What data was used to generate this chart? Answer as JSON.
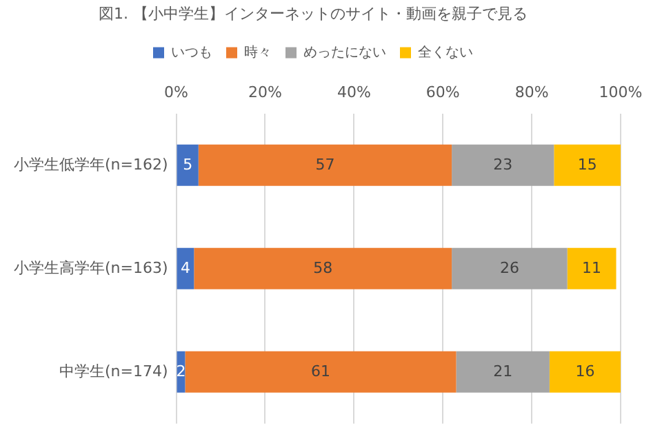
{
  "chart_data": {
    "type": "bar",
    "orientation": "horizontal",
    "stacked": true,
    "title": "図1. 【小中学生】インターネットのサイト・動画を親子で見る",
    "categories": [
      "小学生低学年(n=162)",
      "小学生高学年(n=163)",
      "中学生(n=174)"
    ],
    "series": [
      {
        "name": "いつも",
        "color": "#4472c4",
        "values": [
          5,
          4,
          2
        ]
      },
      {
        "name": "時々",
        "color": "#ed7d31",
        "values": [
          57,
          58,
          61
        ]
      },
      {
        "name": "めったにない",
        "color": "#a5a5a5",
        "values": [
          23,
          26,
          21
        ]
      },
      {
        "name": "全くない",
        "color": "#ffc000",
        "values": [
          15,
          11,
          16
        ]
      }
    ],
    "xlim": [
      0,
      100
    ],
    "xticks": [
      {
        "value": 0,
        "label": "0%"
      },
      {
        "value": 20,
        "label": "20%"
      },
      {
        "value": 40,
        "label": "40%"
      },
      {
        "value": 60,
        "label": "60%"
      },
      {
        "value": 80,
        "label": "80%"
      },
      {
        "value": 100,
        "label": "100%"
      }
    ],
    "grid": "x",
    "legend": "top",
    "data_labels": true
  }
}
